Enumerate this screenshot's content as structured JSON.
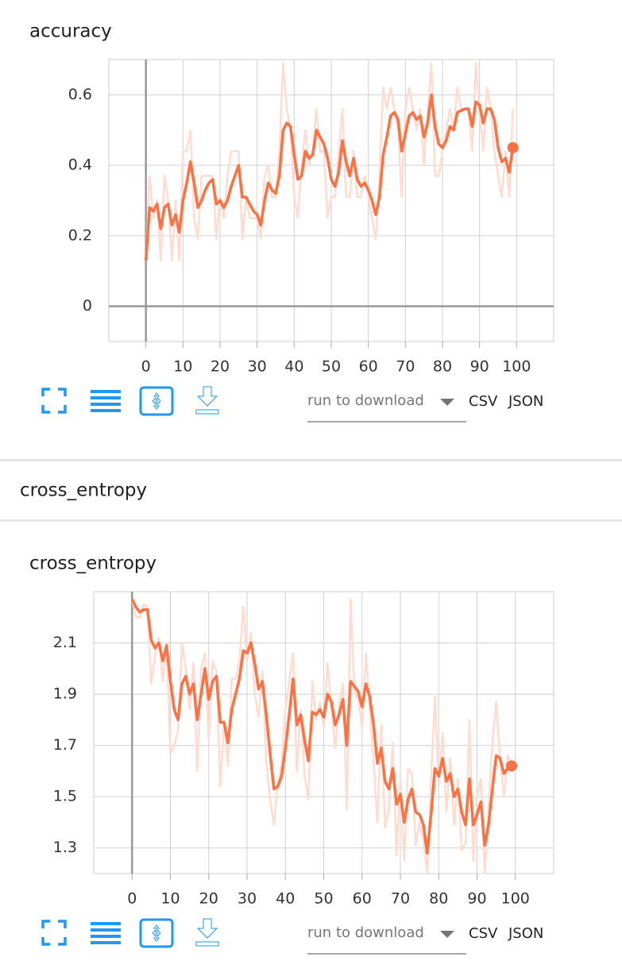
{
  "section_header": "cross_entropy",
  "controls": [
    {
      "download_label": "run to download",
      "csv": "CSV",
      "json": "JSON"
    },
    {
      "download_label": "run to download",
      "csv": "CSV",
      "json": "JSON"
    }
  ],
  "chart_data": [
    {
      "type": "line",
      "title": "accuracy",
      "x": [
        0,
        1,
        2,
        3,
        4,
        5,
        6,
        7,
        8,
        9,
        10,
        11,
        12,
        13,
        14,
        15,
        16,
        17,
        18,
        19,
        20,
        21,
        22,
        23,
        24,
        25,
        26,
        27,
        28,
        29,
        30,
        31,
        32,
        33,
        34,
        35,
        36,
        37,
        38,
        39,
        40,
        41,
        42,
        43,
        44,
        45,
        46,
        47,
        48,
        49,
        50,
        51,
        52,
        53,
        54,
        55,
        56,
        57,
        58,
        59,
        60,
        61,
        62,
        63,
        64,
        65,
        66,
        67,
        68,
        69,
        70,
        71,
        72,
        73,
        74,
        75,
        76,
        77,
        78,
        79,
        80,
        81,
        82,
        83,
        84,
        85,
        86,
        87,
        88,
        89,
        90,
        91,
        92,
        93,
        94,
        95,
        96,
        97,
        98,
        99
      ],
      "xlim": [
        -10,
        110
      ],
      "xticks": [
        0,
        10,
        20,
        30,
        40,
        50,
        60,
        70,
        80,
        90,
        100
      ],
      "ylim": [
        -0.1,
        0.7
      ],
      "yticks": [
        0,
        0.2,
        0.4,
        0.6
      ],
      "grid": true,
      "series": [
        {
          "color": "#ffdccf",
          "values": [
            0.13,
            0.37,
            0.25,
            0.3,
            0.13,
            0.37,
            0.3,
            0.13,
            0.3,
            0.13,
            0.44,
            0.44,
            0.5,
            0.25,
            0.19,
            0.37,
            0.37,
            0.37,
            0.37,
            0.19,
            0.31,
            0.25,
            0.37,
            0.44,
            0.44,
            0.44,
            0.19,
            0.31,
            0.25,
            0.25,
            0.25,
            0.19,
            0.37,
            0.4,
            0.31,
            0.31,
            0.44,
            0.69,
            0.56,
            0.5,
            0.31,
            0.25,
            0.4,
            0.5,
            0.4,
            0.44,
            0.56,
            0.44,
            0.44,
            0.25,
            0.31,
            0.31,
            0.44,
            0.56,
            0.31,
            0.31,
            0.44,
            0.31,
            0.31,
            0.37,
            0.31,
            0.25,
            0.19,
            0.37,
            0.62,
            0.56,
            0.62,
            0.56,
            0.5,
            0.31,
            0.56,
            0.62,
            0.56,
            0.5,
            0.56,
            0.4,
            0.56,
            0.69,
            0.37,
            0.37,
            0.44,
            0.5,
            0.56,
            0.5,
            0.62,
            0.56,
            0.56,
            0.56,
            0.44,
            0.69,
            0.56,
            0.44,
            0.62,
            0.56,
            0.44,
            0.37,
            0.31,
            0.44,
            0.31,
            0.56
          ]
        },
        {
          "color": "#ff7043",
          "end_marker": true,
          "values": [
            0.13,
            0.28,
            0.27,
            0.29,
            0.22,
            0.28,
            0.29,
            0.23,
            0.26,
            0.21,
            0.3,
            0.35,
            0.41,
            0.35,
            0.28,
            0.3,
            0.33,
            0.35,
            0.36,
            0.29,
            0.3,
            0.28,
            0.3,
            0.34,
            0.37,
            0.4,
            0.31,
            0.31,
            0.29,
            0.27,
            0.26,
            0.23,
            0.3,
            0.35,
            0.33,
            0.32,
            0.37,
            0.5,
            0.52,
            0.51,
            0.43,
            0.36,
            0.37,
            0.44,
            0.42,
            0.43,
            0.5,
            0.48,
            0.46,
            0.42,
            0.36,
            0.34,
            0.38,
            0.47,
            0.41,
            0.37,
            0.42,
            0.36,
            0.34,
            0.35,
            0.33,
            0.3,
            0.26,
            0.31,
            0.43,
            0.48,
            0.54,
            0.55,
            0.53,
            0.44,
            0.49,
            0.54,
            0.55,
            0.53,
            0.54,
            0.48,
            0.52,
            0.6,
            0.51,
            0.46,
            0.45,
            0.47,
            0.51,
            0.5,
            0.55,
            0.555,
            0.56,
            0.56,
            0.51,
            0.58,
            0.57,
            0.52,
            0.56,
            0.56,
            0.53,
            0.45,
            0.41,
            0.42,
            0.38,
            0.45
          ]
        }
      ]
    },
    {
      "type": "line",
      "title": "cross_entropy",
      "x": [
        0,
        1,
        2,
        3,
        4,
        5,
        6,
        7,
        8,
        9,
        10,
        11,
        12,
        13,
        14,
        15,
        16,
        17,
        18,
        19,
        20,
        21,
        22,
        23,
        24,
        25,
        26,
        27,
        28,
        29,
        30,
        31,
        32,
        33,
        34,
        35,
        36,
        37,
        38,
        39,
        40,
        41,
        42,
        43,
        44,
        45,
        46,
        47,
        48,
        49,
        50,
        51,
        52,
        53,
        54,
        55,
        56,
        57,
        58,
        59,
        60,
        61,
        62,
        63,
        64,
        65,
        66,
        67,
        68,
        69,
        70,
        71,
        72,
        73,
        74,
        75,
        76,
        77,
        78,
        79,
        80,
        81,
        82,
        83,
        84,
        85,
        86,
        87,
        88,
        89,
        90,
        91,
        92,
        93,
        94,
        95,
        96,
        97,
        98,
        99
      ],
      "xlim": [
        -10,
        110
      ],
      "xticks": [
        0,
        10,
        20,
        30,
        40,
        50,
        60,
        70,
        80,
        90,
        100
      ],
      "ylim": [
        1.2,
        2.3
      ],
      "yticks": [
        1.3,
        1.5,
        1.7,
        1.9,
        2.1
      ],
      "grid": true,
      "series": [
        {
          "color": "#ffdccf",
          "values": [
            2.27,
            2.2,
            2.2,
            2.25,
            2.24,
            1.94,
            2.05,
            2.12,
            1.95,
            2.1,
            1.67,
            1.7,
            1.76,
            2.1,
            2.0,
            1.84,
            2.02,
            1.6,
            2.0,
            2.06,
            1.72,
            2.03,
            1.99,
            1.54,
            1.79,
            1.62,
            1.96,
            1.96,
            2.03,
            2.24,
            2.03,
            2.14,
            1.9,
            1.81,
            1.99,
            1.64,
            1.49,
            1.39,
            1.55,
            1.63,
            1.84,
            1.95,
            2.06,
            1.6,
            1.84,
            1.58,
            1.49,
            1.95,
            1.8,
            1.87,
            1.77,
            2.02,
            1.84,
            1.69,
            1.86,
            1.94,
            1.45,
            2.27,
            1.91,
            1.88,
            1.77,
            2.06,
            1.84,
            1.64,
            1.4,
            1.78,
            1.38,
            1.45,
            1.71,
            1.27,
            1.56,
            1.25,
            1.61,
            1.59,
            1.31,
            1.4,
            1.33,
            1.2,
            1.57,
            1.89,
            1.54,
            1.75,
            1.44,
            1.65,
            1.39,
            1.57,
            1.29,
            1.32,
            1.8,
            1.25,
            1.5,
            1.57,
            1.2,
            1.46,
            1.71,
            1.87,
            1.64,
            1.5,
            1.66,
            1.63
          ]
        },
        {
          "color": "#ff7043",
          "end_marker": true,
          "values": [
            2.27,
            2.24,
            2.22,
            2.23,
            2.23,
            2.11,
            2.08,
            2.1,
            2.03,
            2.09,
            1.95,
            1.84,
            1.8,
            1.94,
            1.97,
            1.9,
            1.94,
            1.8,
            1.9,
            2.0,
            1.88,
            1.95,
            1.97,
            1.79,
            1.79,
            1.71,
            1.84,
            1.9,
            1.96,
            2.07,
            2.06,
            2.1,
            2.02,
            1.92,
            1.95,
            1.82,
            1.67,
            1.53,
            1.54,
            1.58,
            1.69,
            1.82,
            1.96,
            1.78,
            1.82,
            1.72,
            1.64,
            1.83,
            1.82,
            1.84,
            1.81,
            1.9,
            1.87,
            1.78,
            1.82,
            1.88,
            1.7,
            1.95,
            1.93,
            1.91,
            1.85,
            1.94,
            1.89,
            1.78,
            1.63,
            1.69,
            1.56,
            1.53,
            1.61,
            1.47,
            1.51,
            1.4,
            1.49,
            1.53,
            1.44,
            1.43,
            1.39,
            1.28,
            1.43,
            1.61,
            1.58,
            1.65,
            1.56,
            1.59,
            1.5,
            1.53,
            1.44,
            1.39,
            1.57,
            1.39,
            1.43,
            1.48,
            1.31,
            1.39,
            1.53,
            1.66,
            1.65,
            1.59,
            1.61,
            1.62
          ]
        }
      ]
    }
  ]
}
